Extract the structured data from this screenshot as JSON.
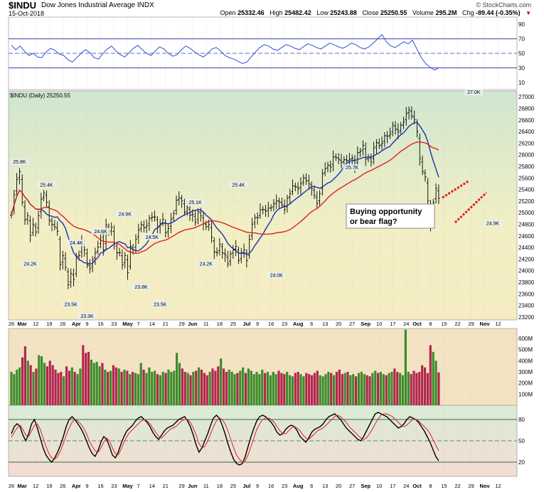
{
  "header": {
    "symbol": "$INDU",
    "name": "Dow Jones Industrial Average",
    "exchange": "INDX",
    "date": "15-Oct-2018",
    "logo": "© StockCharts.com",
    "open_label": "Open",
    "open": "25332.46",
    "high_label": "High",
    "high": "25482.42",
    "low_label": "Low",
    "low": "25243.88",
    "close_label": "Close",
    "close": "25250.55",
    "volume_label": "Volume",
    "volume": "295.2M",
    "chg_label": "Chg",
    "chg": "-89.44 (-0.35%)"
  },
  "chart_data": [
    {
      "type": "line",
      "panel": "indicator-top",
      "yticks": [
        10,
        30,
        50,
        70,
        90
      ],
      "reference_lines": [
        30,
        50,
        70
      ],
      "series": [
        {
          "values": [
            61,
            55,
            60,
            53,
            47,
            50,
            45,
            44,
            52,
            57,
            54,
            49,
            47,
            41,
            38,
            44,
            50,
            55,
            51,
            44,
            42,
            50,
            56,
            60,
            53,
            48,
            45,
            51,
            57,
            61,
            55,
            50,
            47,
            53,
            59,
            56,
            50,
            46,
            48,
            55,
            60,
            57,
            52,
            48,
            45,
            50,
            56,
            58,
            53,
            47,
            44,
            42,
            39,
            36,
            38,
            45,
            52,
            58,
            62,
            60,
            56,
            54,
            58,
            62,
            60,
            57,
            55,
            59,
            63,
            61,
            58,
            56,
            60,
            64,
            62,
            59,
            57,
            60,
            64,
            62,
            58,
            56,
            59,
            64,
            70,
            76,
            66,
            60,
            58,
            62,
            66,
            63,
            68,
            56,
            44,
            36,
            31,
            27,
            30
          ]
        }
      ]
    },
    {
      "type": "line",
      "panel": "price",
      "title": "$INDU (Daily) 25250.55",
      "yticks": [
        23200,
        23400,
        23600,
        23800,
        24000,
        24200,
        24400,
        24600,
        24800,
        25000,
        25200,
        25400,
        25600,
        25800,
        26000,
        26200,
        26400,
        26600,
        26800,
        27000
      ],
      "ylim": [
        23150,
        27100
      ],
      "x_tick_labels": [
        "26",
        "Mar",
        "12",
        "19",
        "26",
        "Apr",
        "9",
        "16",
        "23",
        "May",
        "7",
        "14",
        "21",
        "29",
        "Jun",
        "11",
        "18",
        "25",
        "Jul",
        "9",
        "16",
        "23",
        "Aug",
        "6",
        "13",
        "20",
        "27",
        "Sep",
        "10",
        "17",
        "24",
        "Oct",
        "8",
        "15",
        "22",
        "29",
        "Nov",
        "12"
      ],
      "point_labels": [
        "25.8K",
        "25.4K",
        "24.2K",
        "24.4K",
        "23.5K",
        "23.3K",
        "24.6K",
        "24.9K",
        "24.5K",
        "23.8K",
        "23.5K",
        "25.1K",
        "24.2K",
        "25.4K",
        "24.0K",
        "25.7K",
        "25.0K",
        "27.0K",
        "24.9K"
      ],
      "annotation": [
        "Buying opportunity",
        "or bear flag?"
      ],
      "closes": [
        24962,
        25310,
        25575,
        25709,
        25179,
        24873,
        24948,
        24609,
        24801,
        24668,
        24946,
        25234,
        25336,
        25180,
        24874,
        24801,
        24758,
        24682,
        24103,
        24258,
        24057,
        23758,
        23952,
        23848,
        24249,
        24264,
        24505,
        24360,
        24103,
        24033,
        24189,
        24311,
        24408,
        24644,
        24360,
        24786,
        24664,
        24748,
        24463,
        24307,
        24311,
        24099,
        24262,
        23963,
        24418,
        24358,
        24544,
        24700,
        24797,
        24740,
        24776,
        24902,
        24925,
        24926,
        24745,
        24809,
        24886,
        24654,
        24726,
        24887,
        24983,
        25214,
        25260,
        25202,
        25008,
        25085,
        24961,
        24974,
        24834,
        25018,
        24947,
        24816,
        24757,
        24797,
        24579,
        24322,
        24307,
        24454,
        24307,
        24271,
        24117,
        24287,
        24357,
        24418,
        24174,
        24307,
        24357,
        24174,
        24540,
        24802,
        24915,
        24919,
        25051,
        25058,
        25028,
        25079,
        25087,
        25150,
        25205,
        25187,
        25145,
        25053,
        25251,
        25329,
        25462,
        25450,
        25414,
        25500,
        25604,
        25560,
        25502,
        25415,
        25299,
        25162,
        25331,
        25669,
        25759,
        25822,
        25790,
        25964,
        25952,
        25918,
        25868,
        25915,
        25899,
        25922,
        25945,
        25807,
        26035,
        26059,
        26163,
        25925,
        25955,
        25874,
        26117,
        26210,
        26158,
        26202,
        26328,
        26320,
        26359,
        26512,
        26446,
        26389,
        26505,
        26570,
        26713,
        26774,
        26670,
        26606,
        26400,
        25933,
        25710,
        25618,
        25210,
        24800,
        25180,
        25420,
        25250
      ],
      "series": [
        {
          "name": "",
          "color": "#1a2fb0",
          "period": 10
        },
        {
          "name": "",
          "color": "#e02020",
          "period": 30
        }
      ]
    },
    {
      "type": "bar",
      "panel": "volume",
      "yticks": [
        "100M",
        "200M",
        "300M",
        "400M",
        "500M",
        "600M"
      ],
      "tick_values": [
        100,
        200,
        300,
        400,
        500,
        600
      ],
      "ylim": [
        0,
        690
      ],
      "values_M": [
        300,
        280,
        320,
        340,
        430,
        530,
        400,
        360,
        300,
        330,
        450,
        440,
        380,
        350,
        400,
        360,
        320,
        290,
        300,
        260,
        350,
        310,
        340,
        300,
        280,
        330,
        540,
        470,
        480,
        410,
        380,
        390,
        350,
        380,
        320,
        300,
        310,
        360,
        340,
        330,
        300,
        320,
        310,
        280,
        300,
        290,
        280,
        380,
        320,
        290,
        340,
        300,
        310,
        280,
        270,
        300,
        290,
        320,
        300,
        310,
        470,
        380,
        330,
        300,
        290,
        270,
        300,
        310,
        340,
        320,
        290,
        270,
        300,
        330,
        310,
        350,
        420,
        330,
        300,
        320,
        300,
        280,
        290,
        310,
        340,
        290,
        330,
        310,
        280,
        300,
        280,
        320,
        290,
        300,
        270,
        300,
        280,
        310,
        290,
        280,
        300,
        270,
        260,
        290,
        300,
        280,
        260,
        290,
        280,
        270,
        290,
        310,
        270,
        260,
        280,
        300,
        290,
        270,
        300,
        320,
        280,
        290,
        300,
        270,
        280,
        260,
        290,
        300,
        280,
        270,
        260,
        290,
        310,
        290,
        300,
        280,
        270,
        290,
        300,
        330,
        300,
        290,
        270,
        680,
        300,
        280,
        310,
        290,
        300,
        360,
        340,
        290,
        540,
        480,
        400,
        295
      ],
      "colors": [
        "#b1264f",
        "#3c8c2c"
      ]
    },
    {
      "type": "line",
      "panel": "indicator-bottom",
      "yticks": [
        20,
        50,
        80
      ],
      "reference_lines": [
        20,
        50,
        80
      ],
      "series": [
        {
          "name": "",
          "color": "#000000",
          "values": [
            60,
            70,
            74,
            70,
            58,
            50,
            60,
            74,
            80,
            68,
            54,
            40,
            30,
            24,
            20,
            26,
            34,
            44,
            56,
            70,
            80,
            84,
            80,
            74,
            68,
            60,
            50,
            40,
            32,
            28,
            36,
            48,
            56,
            52,
            42,
            30,
            26,
            34,
            46,
            56,
            64,
            68,
            72,
            78,
            82,
            84,
            80,
            76,
            70,
            62,
            56,
            52,
            58,
            64,
            68,
            70,
            72,
            76,
            80,
            82,
            84,
            78,
            70,
            58,
            44,
            34,
            40,
            50,
            60,
            72,
            82,
            86,
            82,
            72,
            60,
            46,
            34,
            24,
            18,
            16,
            18,
            28,
            42,
            56,
            68,
            78,
            84,
            86,
            84,
            80,
            76,
            70,
            62,
            58,
            60,
            66,
            70,
            72,
            70,
            64,
            56,
            52,
            48,
            54,
            62,
            66,
            68,
            70,
            74,
            80,
            84,
            86,
            88,
            84,
            80,
            74,
            68,
            64,
            60,
            56,
            52,
            50,
            56,
            64,
            72,
            80,
            88,
            90,
            88,
            86,
            84,
            80,
            76,
            72,
            68,
            70,
            74,
            80,
            84,
            82,
            80,
            76,
            70,
            64,
            56,
            48,
            38,
            28,
            22
          ]
        },
        {
          "name": "",
          "color": "#e02020",
          "values": [
            55,
            62,
            68,
            72,
            66,
            58,
            56,
            64,
            72,
            74,
            66,
            54,
            42,
            32,
            26,
            24,
            28,
            36,
            46,
            58,
            68,
            76,
            80,
            78,
            74,
            68,
            60,
            50,
            42,
            36,
            34,
            40,
            48,
            54,
            50,
            40,
            32,
            30,
            38,
            48,
            56,
            62,
            66,
            70,
            74,
            78,
            80,
            78,
            74,
            68,
            62,
            56,
            54,
            58,
            62,
            66,
            68,
            70,
            74,
            78,
            80,
            80,
            76,
            68,
            58,
            46,
            40,
            42,
            50,
            60,
            70,
            78,
            82,
            80,
            74,
            64,
            52,
            40,
            30,
            24,
            20,
            22,
            30,
            42,
            54,
            66,
            74,
            80,
            82,
            82,
            80,
            76,
            70,
            64,
            60,
            60,
            64,
            68,
            70,
            68,
            64,
            58,
            54,
            52,
            56,
            60,
            64,
            66,
            68,
            72,
            76,
            80,
            84,
            86,
            84,
            80,
            76,
            70,
            66,
            62,
            58,
            54,
            52,
            54,
            60,
            66,
            74,
            80,
            86,
            88,
            88,
            86,
            84,
            80,
            76,
            72,
            70,
            72,
            76,
            80,
            80,
            78,
            74,
            70,
            66,
            60,
            52,
            44,
            36
          ]
        }
      ]
    }
  ]
}
